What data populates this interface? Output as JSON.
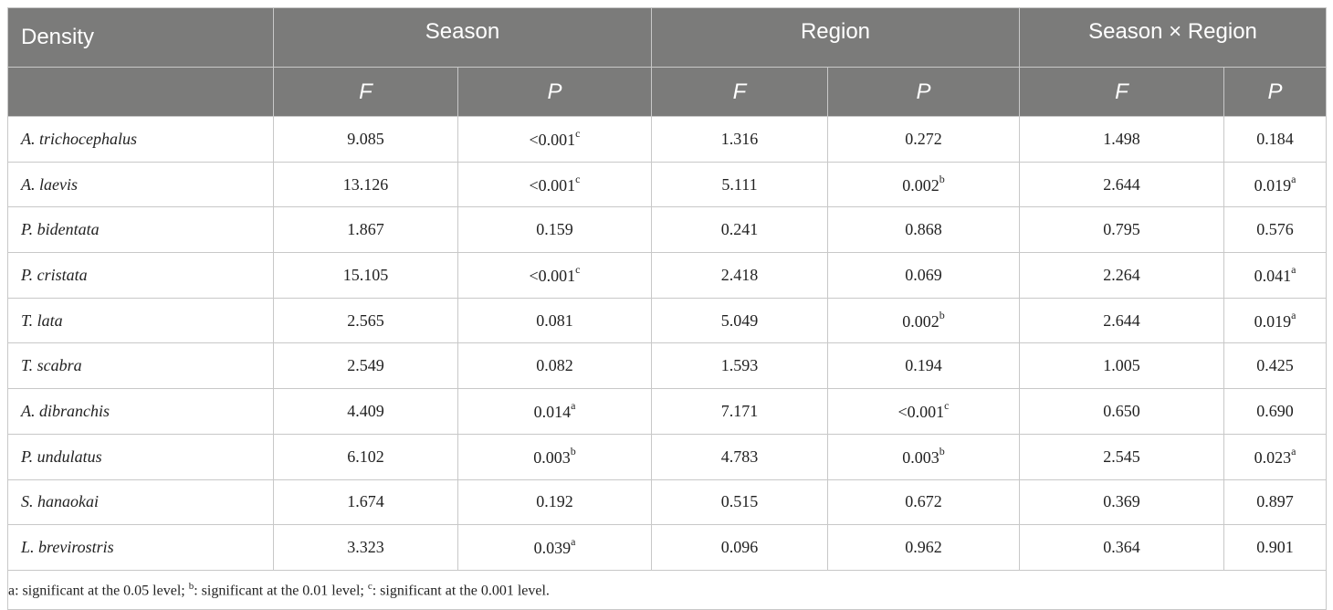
{
  "header": {
    "density_label": "Density",
    "groups": [
      "Season",
      "Region",
      "Season × Region"
    ],
    "sub": [
      "F",
      "P",
      "F",
      "P",
      "F",
      "P"
    ]
  },
  "rows": [
    {
      "species": "A. trichocephalus",
      "cells": [
        [
          "9.085",
          ""
        ],
        [
          "<0.001",
          "c"
        ],
        [
          "1.316",
          ""
        ],
        [
          "0.272",
          ""
        ],
        [
          "1.498",
          ""
        ],
        [
          "0.184",
          ""
        ]
      ]
    },
    {
      "species": "A. laevis",
      "cells": [
        [
          "13.126",
          ""
        ],
        [
          "<0.001",
          "c"
        ],
        [
          "5.111",
          ""
        ],
        [
          "0.002",
          "b"
        ],
        [
          "2.644",
          ""
        ],
        [
          "0.019",
          "a"
        ]
      ]
    },
    {
      "species": "P. bidentata",
      "cells": [
        [
          "1.867",
          ""
        ],
        [
          "0.159",
          ""
        ],
        [
          "0.241",
          ""
        ],
        [
          "0.868",
          ""
        ],
        [
          "0.795",
          ""
        ],
        [
          "0.576",
          ""
        ]
      ]
    },
    {
      "species": "P. cristata",
      "cells": [
        [
          "15.105",
          ""
        ],
        [
          "<0.001",
          "c"
        ],
        [
          "2.418",
          ""
        ],
        [
          "0.069",
          ""
        ],
        [
          "2.264",
          ""
        ],
        [
          "0.041",
          "a"
        ]
      ]
    },
    {
      "species": "T. lata",
      "cells": [
        [
          "2.565",
          ""
        ],
        [
          "0.081",
          ""
        ],
        [
          "5.049",
          ""
        ],
        [
          "0.002",
          "b"
        ],
        [
          "2.644",
          ""
        ],
        [
          "0.019",
          "a"
        ]
      ]
    },
    {
      "species": "T. scabra",
      "cells": [
        [
          "2.549",
          ""
        ],
        [
          "0.082",
          ""
        ],
        [
          "1.593",
          ""
        ],
        [
          "0.194",
          ""
        ],
        [
          "1.005",
          ""
        ],
        [
          "0.425",
          ""
        ]
      ]
    },
    {
      "species": "A. dibranchis",
      "cells": [
        [
          "4.409",
          ""
        ],
        [
          "0.014",
          "a"
        ],
        [
          "7.171",
          ""
        ],
        [
          "<0.001",
          "c"
        ],
        [
          "0.650",
          ""
        ],
        [
          "0.690",
          ""
        ]
      ]
    },
    {
      "species": "P. undulatus",
      "cells": [
        [
          "6.102",
          ""
        ],
        [
          "0.003",
          "b"
        ],
        [
          "4.783",
          ""
        ],
        [
          "0.003",
          "b"
        ],
        [
          "2.545",
          ""
        ],
        [
          "0.023",
          "a"
        ]
      ]
    },
    {
      "species": "S. hanaokai",
      "cells": [
        [
          "1.674",
          ""
        ],
        [
          "0.192",
          ""
        ],
        [
          "0.515",
          ""
        ],
        [
          "0.672",
          ""
        ],
        [
          "0.369",
          ""
        ],
        [
          "0.897",
          ""
        ]
      ]
    },
    {
      "species": "L. brevirostris",
      "cells": [
        [
          "3.323",
          ""
        ],
        [
          "0.039",
          "a"
        ],
        [
          "0.096",
          ""
        ],
        [
          "0.962",
          ""
        ],
        [
          "0.364",
          ""
        ],
        [
          "0.901",
          ""
        ]
      ]
    }
  ],
  "footnote": {
    "a_text": "a: significant at the 0.05 level; ",
    "b_mark": "b",
    "b_text": ": significant at the 0.01 level; ",
    "c_mark": "c",
    "c_text": ": significant at the 0.001 level."
  }
}
